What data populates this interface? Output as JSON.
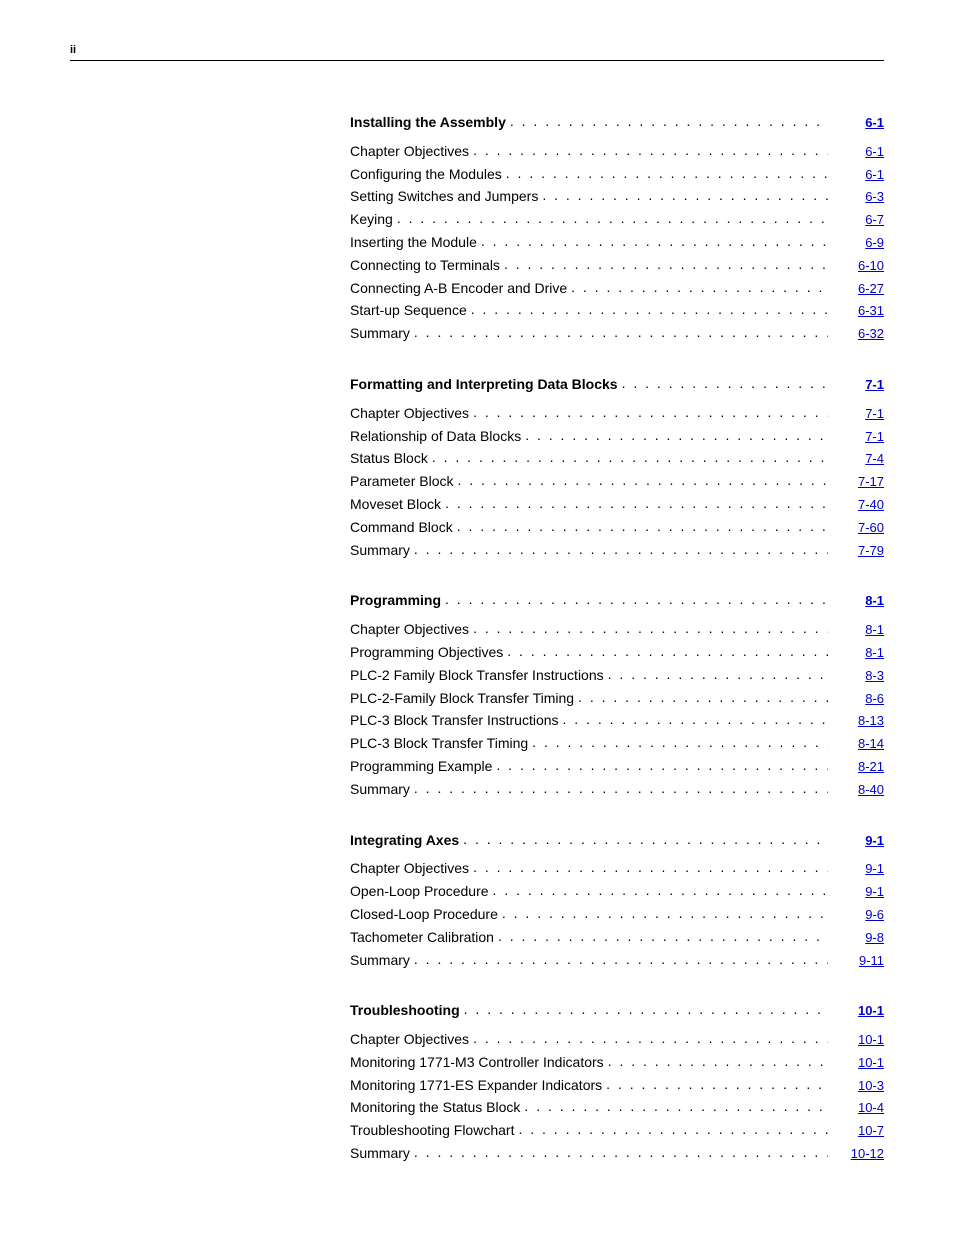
{
  "page_number": "ii",
  "sections": [
    {
      "title": "Installing the Assembly",
      "title_page": "6-1",
      "items": [
        {
          "label": "Chapter Objectives",
          "page": "6-1"
        },
        {
          "label": "Configuring the Modules",
          "page": "6-1"
        },
        {
          "label": "Setting Switches and Jumpers",
          "page": "6-3"
        },
        {
          "label": "Keying",
          "page": "6-7"
        },
        {
          "label": "Inserting the Module",
          "page": "6-9"
        },
        {
          "label": "Connecting to Terminals",
          "page": "6-10"
        },
        {
          "label": "Connecting A-B Encoder and Drive",
          "page": "6-27"
        },
        {
          "label": "Start-up Sequence",
          "page": "6-31"
        },
        {
          "label": "Summary",
          "page": "6-32"
        }
      ]
    },
    {
      "title": "Formatting and Interpreting Data Blocks",
      "title_page": "7-1",
      "items": [
        {
          "label": "Chapter Objectives",
          "page": "7-1"
        },
        {
          "label": "Relationship of Data Blocks",
          "page": "7-1"
        },
        {
          "label": "Status Block",
          "page": "7-4"
        },
        {
          "label": "Parameter Block",
          "page": "7-17"
        },
        {
          "label": "Moveset Block",
          "page": "7-40"
        },
        {
          "label": "Command Block",
          "page": "7-60"
        },
        {
          "label": "Summary",
          "page": "7-79"
        }
      ]
    },
    {
      "title": "Programming",
      "title_page": "8-1",
      "items": [
        {
          "label": "Chapter Objectives",
          "page": "8-1"
        },
        {
          "label": "Programming Objectives",
          "page": "8-1"
        },
        {
          "label": "PLC-2 Family Block Transfer Instructions",
          "page": "8-3"
        },
        {
          "label": "PLC-2-Family Block Transfer Timing",
          "page": "8-6"
        },
        {
          "label": "PLC-3 Block Transfer Instructions",
          "page": "8-13"
        },
        {
          "label": "PLC-3 Block Transfer Timing",
          "page": "8-14"
        },
        {
          "label": "Programming Example",
          "page": "8-21"
        },
        {
          "label": "Summary",
          "page": "8-40"
        }
      ]
    },
    {
      "title": "Integrating Axes",
      "title_page": "9-1",
      "items": [
        {
          "label": "Chapter Objectives",
          "page": "9-1"
        },
        {
          "label": "Open-Loop Procedure",
          "page": "9-1"
        },
        {
          "label": "Closed-Loop Procedure",
          "page": "9-6"
        },
        {
          "label": "Tachometer Calibration",
          "page": "9-8"
        },
        {
          "label": "Summary",
          "page": "9-11"
        }
      ]
    },
    {
      "title": "Troubleshooting",
      "title_page": "10-1",
      "items": [
        {
          "label": "Chapter Objectives",
          "page": "10-1"
        },
        {
          "label": "Monitoring 1771-M3 Controller Indicators",
          "page": "10-1"
        },
        {
          "label": "Monitoring 1771-ES Expander Indicators",
          "page": "10-3"
        },
        {
          "label": "Monitoring the Status Block",
          "page": "10-4"
        },
        {
          "label": "Troubleshooting Flowchart",
          "page": "10-7"
        },
        {
          "label": "Summary",
          "page": "10-12"
        }
      ]
    }
  ]
}
